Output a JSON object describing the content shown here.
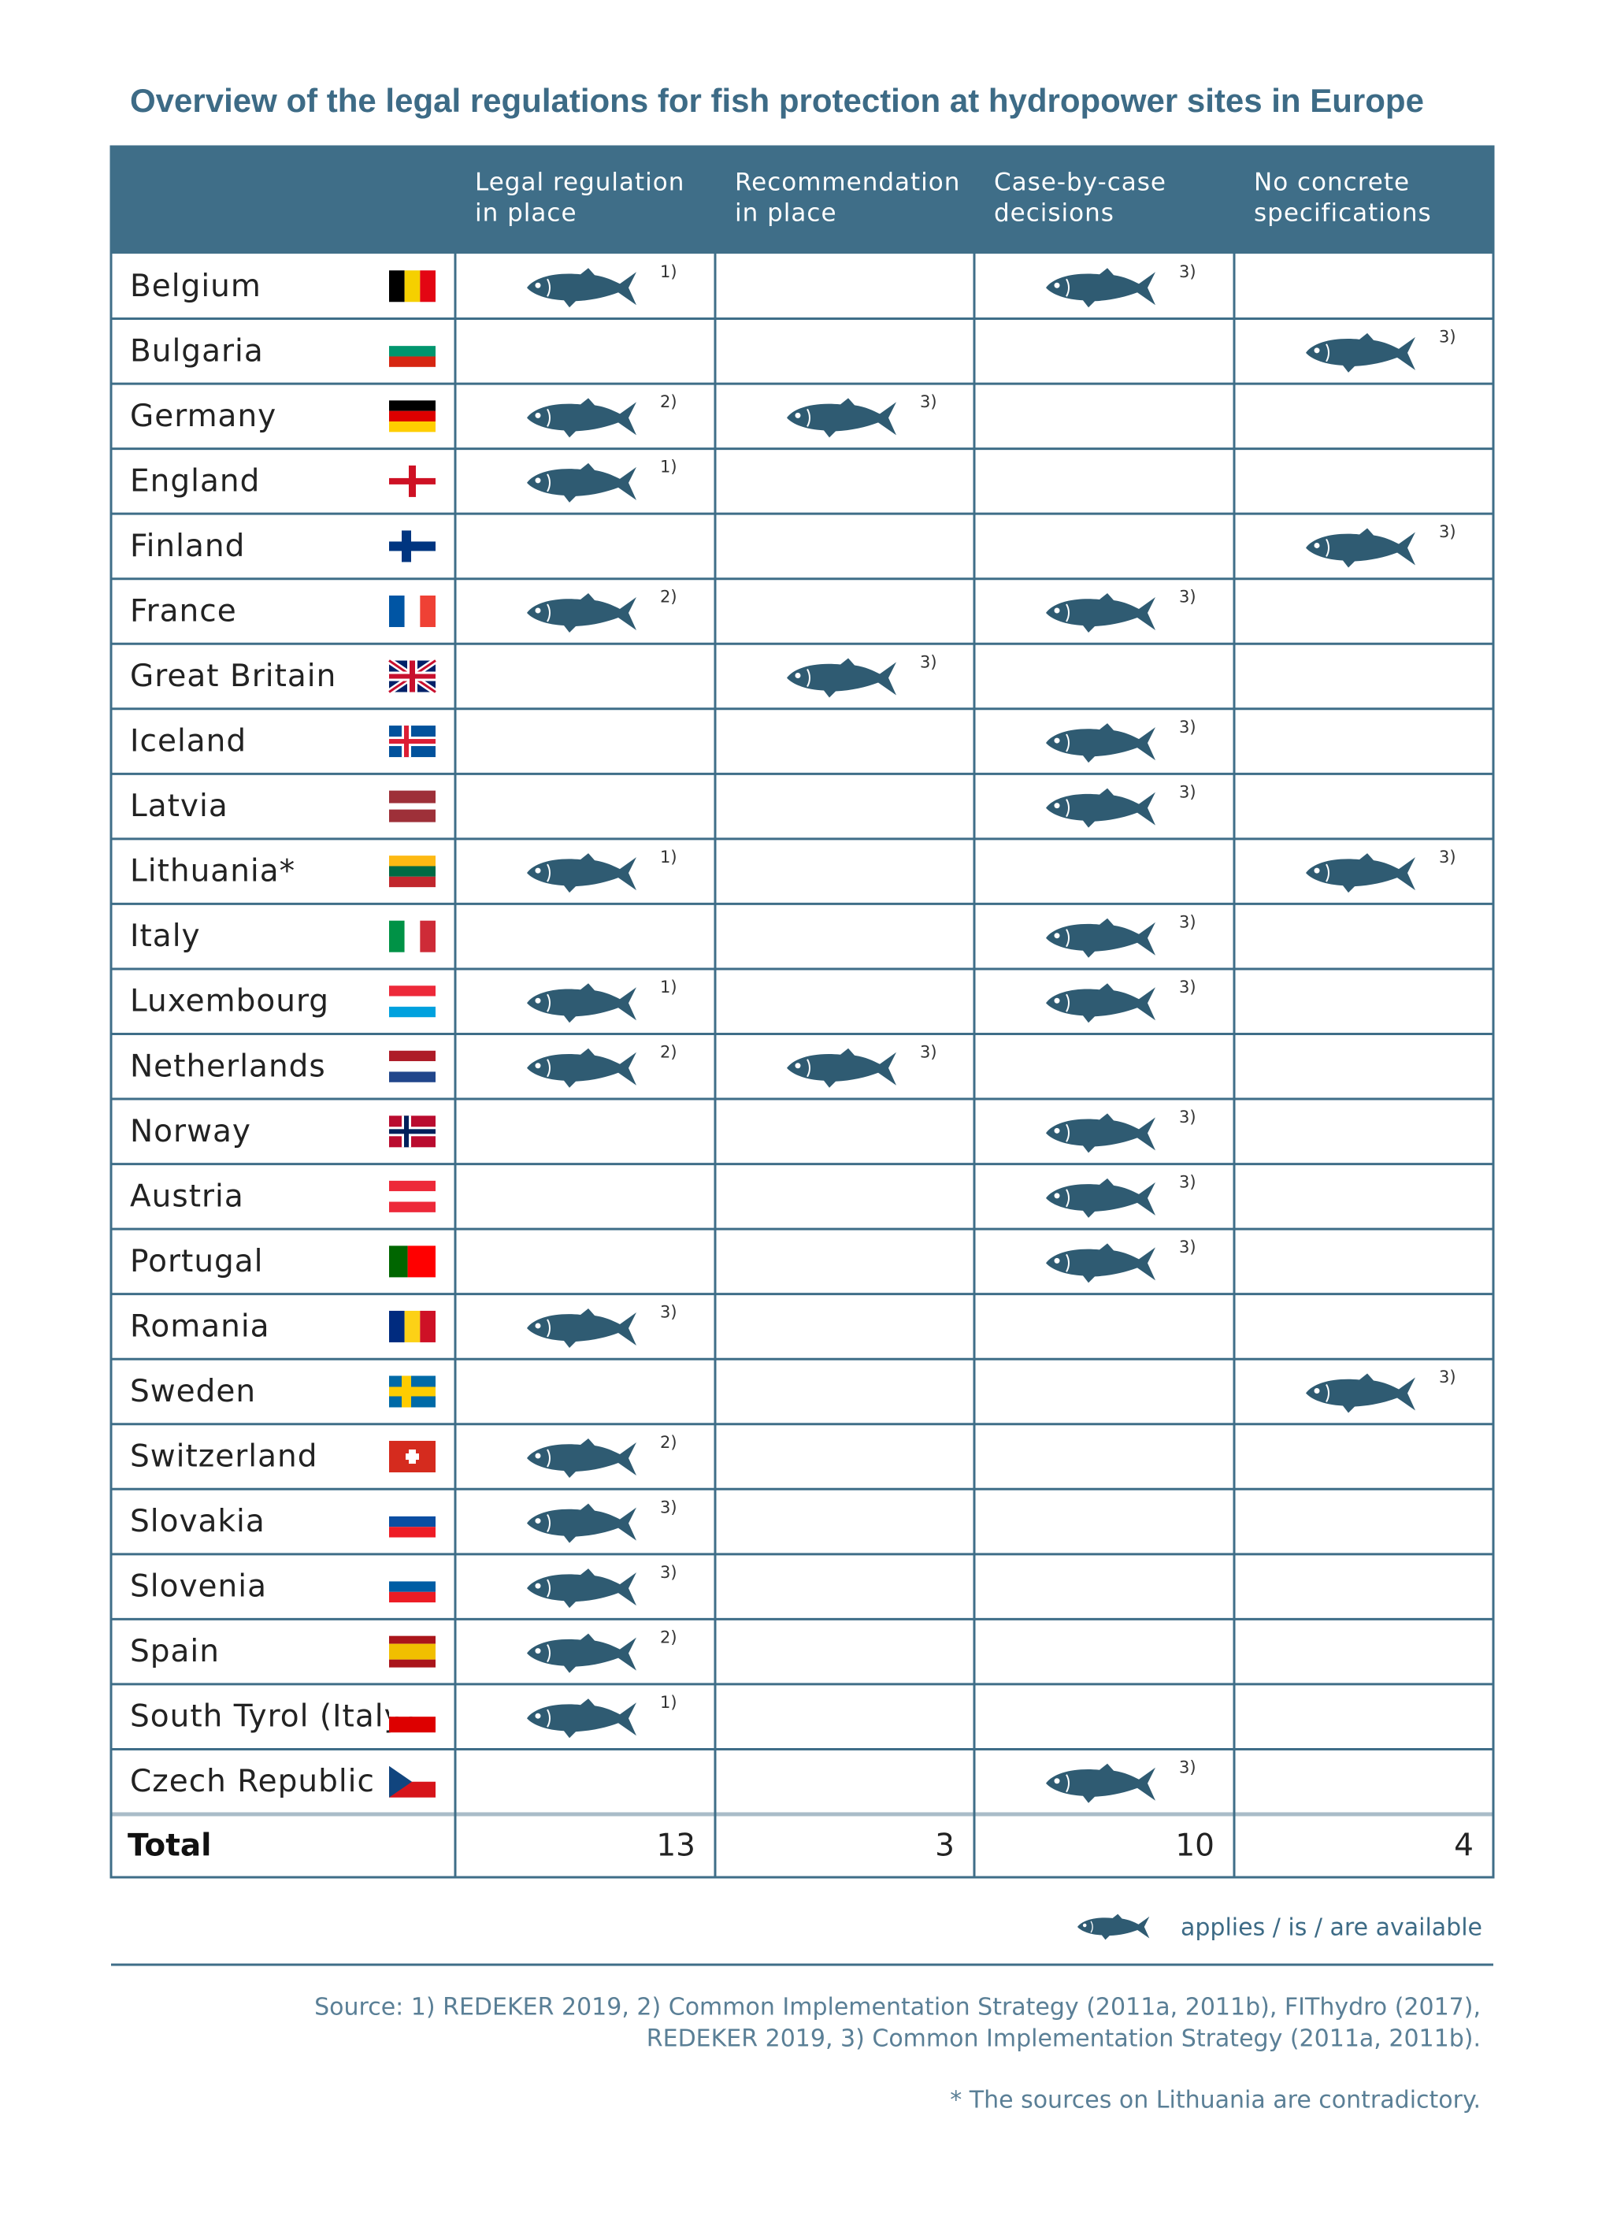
{
  "title": "Overview of the legal regulations for fish protection at hydropower sites in Europe",
  "table": {
    "columns": [
      [
        "Legal regulation",
        "in place"
      ],
      [
        "Recommendation",
        "in place"
      ],
      [
        "Case-by-case",
        "decisions"
      ],
      [
        "No concrete",
        "specifications"
      ]
    ],
    "rows": [
      {
        "country": "Belgium",
        "cells": [
          "1)",
          null,
          "3)",
          null
        ]
      },
      {
        "country": "Bulgaria",
        "cells": [
          null,
          null,
          null,
          "3)"
        ]
      },
      {
        "country": "Germany",
        "cells": [
          "2)",
          "3)",
          null,
          null
        ]
      },
      {
        "country": "England",
        "cells": [
          "1)",
          null,
          null,
          null
        ]
      },
      {
        "country": "Finland",
        "cells": [
          null,
          null,
          null,
          "3)"
        ]
      },
      {
        "country": "France",
        "cells": [
          "2)",
          null,
          "3)",
          null
        ]
      },
      {
        "country": "Great Britain",
        "cells": [
          null,
          "3)",
          null,
          null
        ]
      },
      {
        "country": "Iceland",
        "cells": [
          null,
          null,
          "3)",
          null
        ]
      },
      {
        "country": "Latvia",
        "cells": [
          null,
          null,
          "3)",
          null
        ]
      },
      {
        "country": "Lithuania*",
        "cells": [
          "1)",
          null,
          null,
          "3)"
        ]
      },
      {
        "country": "Italy",
        "cells": [
          null,
          null,
          "3)",
          null
        ]
      },
      {
        "country": "Luxembourg",
        "cells": [
          "1)",
          null,
          "3)",
          null
        ]
      },
      {
        "country": "Netherlands",
        "cells": [
          "2)",
          "3)",
          null,
          null
        ]
      },
      {
        "country": "Norway",
        "cells": [
          null,
          null,
          "3)",
          null
        ]
      },
      {
        "country": "Austria",
        "cells": [
          null,
          null,
          "3)",
          null
        ]
      },
      {
        "country": "Portugal",
        "cells": [
          null,
          null,
          "3)",
          null
        ]
      },
      {
        "country": "Romania",
        "cells": [
          "3)",
          null,
          null,
          null
        ]
      },
      {
        "country": "Sweden",
        "cells": [
          null,
          null,
          null,
          "3)"
        ]
      },
      {
        "country": "Switzerland",
        "cells": [
          "2)",
          null,
          null,
          null
        ]
      },
      {
        "country": "Slovakia",
        "cells": [
          "3)",
          null,
          null,
          null
        ]
      },
      {
        "country": "Slovenia",
        "cells": [
          "3)",
          null,
          null,
          null
        ]
      },
      {
        "country": "Spain",
        "cells": [
          "2)",
          null,
          null,
          null
        ]
      },
      {
        "country": "South Tyrol (Italy)",
        "cells": [
          "1)",
          null,
          null,
          null
        ]
      },
      {
        "country": "Czech Republic",
        "cells": [
          null,
          null,
          "3)",
          null
        ]
      }
    ],
    "total": {
      "label": "Total",
      "values": [
        13,
        3,
        10,
        4
      ]
    }
  },
  "legend": "applies / is / are available",
  "source": [
    "Source: 1) REDEKER 2019, 2) Common Implementation Strategy (2011a, 2011b), FIThydro (2017),",
    "REDEKER 2019, 3) Common Implementation Strategy (2011a, 2011b)."
  ],
  "note": "* The sources on Lithuania are contradictory."
}
